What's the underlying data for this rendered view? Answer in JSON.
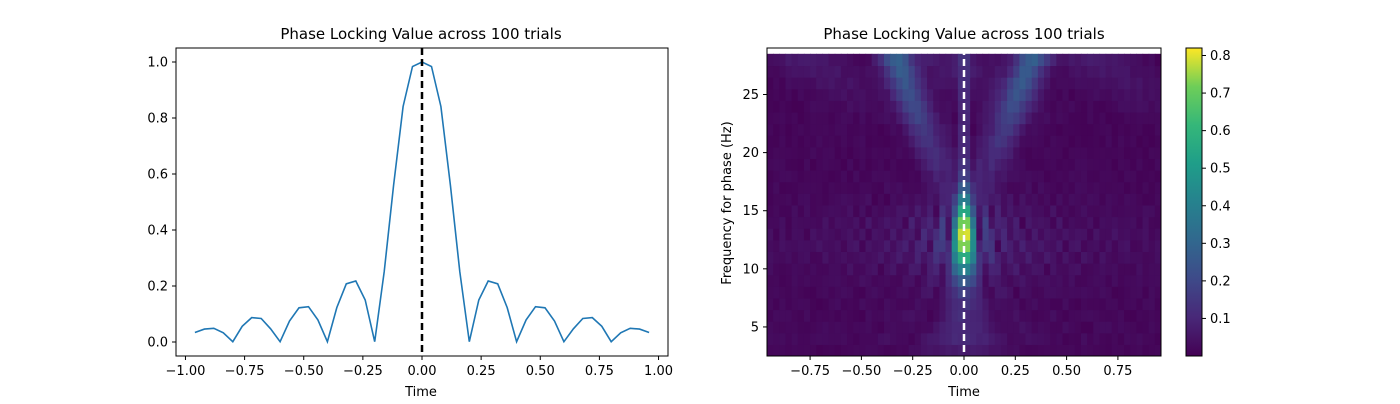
{
  "chart_data": [
    {
      "type": "line",
      "title": "Phase Locking Value across 100 trials",
      "xlabel": "Time",
      "ylabel": "",
      "xlim": [
        -1.04,
        1.04
      ],
      "ylim": [
        -0.05,
        1.05
      ],
      "xticks": [
        -1.0,
        -0.75,
        -0.5,
        -0.25,
        0.0,
        0.25,
        0.5,
        0.75,
        1.0
      ],
      "xtick_labels": [
        "−1.00",
        "−0.75",
        "−0.50",
        "−0.25",
        "0.00",
        "0.25",
        "0.50",
        "0.75",
        "1.00"
      ],
      "yticks": [
        0.0,
        0.2,
        0.4,
        0.6,
        0.8,
        1.0
      ],
      "ytick_labels": [
        "0.0",
        "0.2",
        "0.4",
        "0.6",
        "0.8",
        "1.0"
      ],
      "grid": false,
      "series_color": "#1f77b4",
      "series": [
        {
          "name": "",
          "x": [
            -0.96,
            -0.92,
            -0.88,
            -0.84,
            -0.8,
            -0.76,
            -0.72,
            -0.68,
            -0.64,
            -0.6,
            -0.56,
            -0.52,
            -0.48,
            -0.44,
            -0.4,
            -0.36,
            -0.32,
            -0.28,
            -0.24,
            -0.2,
            -0.16,
            -0.12,
            -0.08,
            -0.04,
            0.0,
            0.04,
            0.08,
            0.12,
            0.16,
            0.2,
            0.24,
            0.28,
            0.32,
            0.36,
            0.4,
            0.44,
            0.48,
            0.52,
            0.56,
            0.6,
            0.64,
            0.68,
            0.72,
            0.76,
            0.8,
            0.84,
            0.88,
            0.92,
            0.96
          ],
          "y": [
            0.034,
            0.046,
            0.049,
            0.033,
            0.001,
            0.056,
            0.087,
            0.084,
            0.047,
            0.001,
            0.075,
            0.122,
            0.126,
            0.079,
            0.001,
            0.123,
            0.208,
            0.218,
            0.15,
            0.001,
            0.251,
            0.56,
            0.841,
            0.984,
            1.0,
            0.984,
            0.841,
            0.56,
            0.251,
            0.001,
            0.15,
            0.218,
            0.208,
            0.123,
            0.001,
            0.079,
            0.126,
            0.122,
            0.075,
            0.001,
            0.047,
            0.084,
            0.087,
            0.056,
            0.001,
            0.033,
            0.049,
            0.046,
            0.034
          ]
        }
      ],
      "vline": {
        "x": 0.0,
        "color": "#000000",
        "style": "dashed"
      }
    },
    {
      "type": "heatmap",
      "title": "Phase Locking Value across 100 trials",
      "xlabel": "Time",
      "ylabel": "Frequency for phase (Hz)",
      "xlim": [
        -0.96,
        0.96
      ],
      "ylim": [
        2.5,
        29.0
      ],
      "xticks": [
        -0.75,
        -0.5,
        -0.25,
        0.0,
        0.25,
        0.5,
        0.75
      ],
      "xtick_labels": [
        "−0.75",
        "−0.50",
        "−0.25",
        "0.00",
        "0.25",
        "0.50",
        "0.75"
      ],
      "yticks": [
        5,
        10,
        15,
        20,
        25
      ],
      "ytick_labels": [
        "5",
        "10",
        "15",
        "20",
        "25"
      ],
      "colormap": "viridis",
      "colorbar": {
        "vmin": 0.0,
        "vmax": 0.82,
        "ticks": [
          0.1,
          0.2,
          0.3,
          0.4,
          0.5,
          0.6,
          0.7,
          0.8
        ],
        "tick_labels": [
          "0.1",
          "0.2",
          "0.3",
          "0.4",
          "0.5",
          "0.6",
          "0.7",
          "0.8"
        ]
      },
      "peak": {
        "time": 0.0,
        "frequency": 13,
        "value": 0.82
      },
      "time_grid": [
        -0.96,
        0.96,
        0.03
      ],
      "freq_grid": [
        3,
        28,
        1
      ],
      "vline": {
        "x": 0.0,
        "color": "#ffffff",
        "style": "dashed"
      }
    }
  ]
}
